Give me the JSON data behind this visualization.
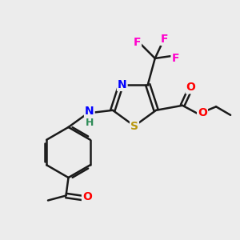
{
  "bg_color": "#ececec",
  "colors": {
    "bond": "#1a1a1a",
    "N": "#0000ff",
    "S": "#b8960c",
    "O": "#ff0000",
    "F": "#ff00cc",
    "H": "#2e8b57"
  },
  "figsize": [
    3.0,
    3.0
  ],
  "dpi": 100
}
